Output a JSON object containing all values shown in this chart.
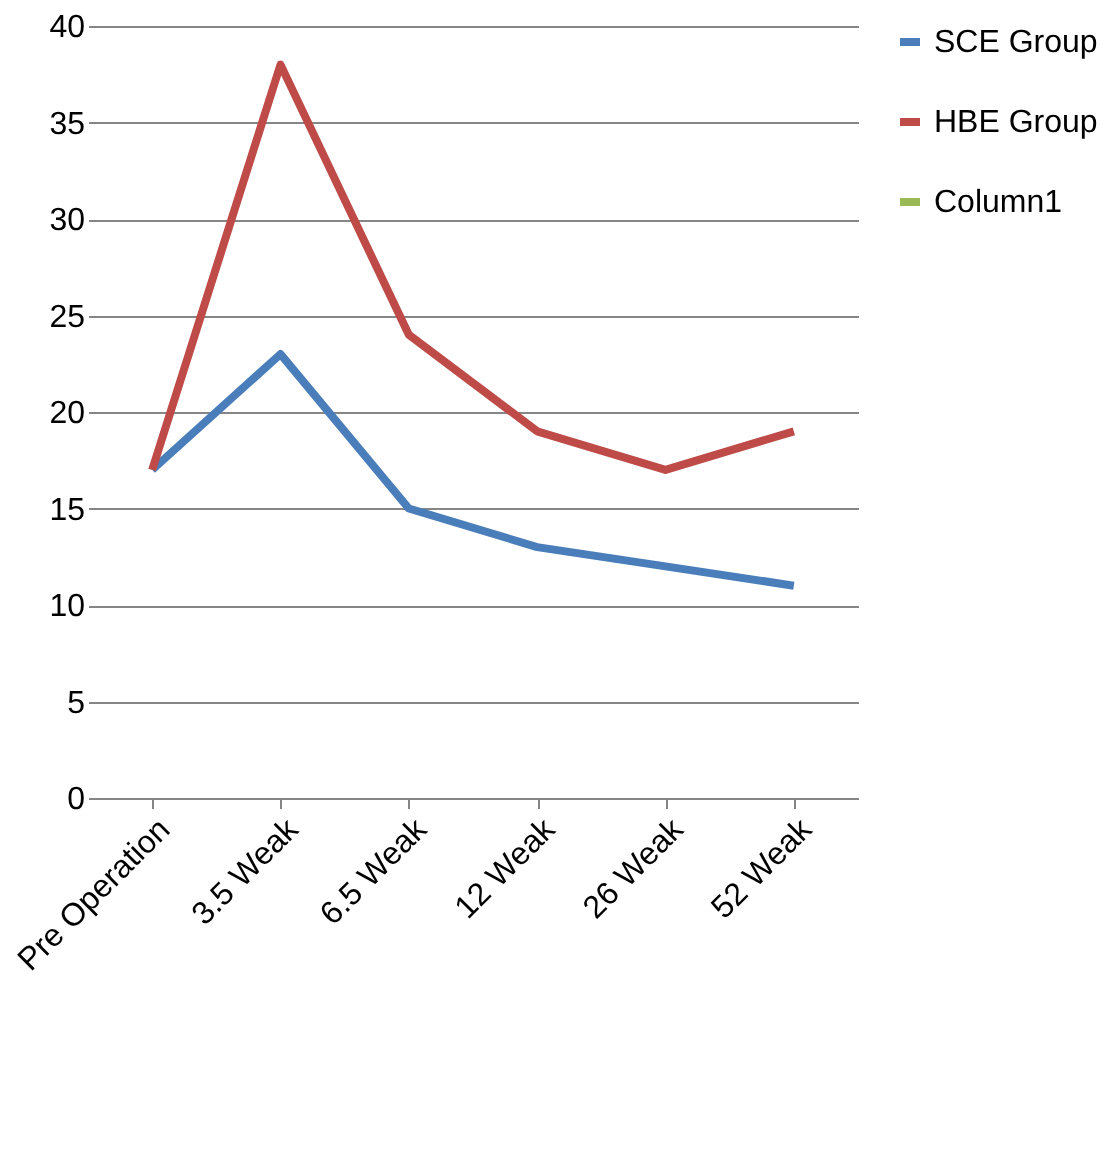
{
  "chart_data": {
    "type": "line",
    "categories": [
      "Pre Operation",
      "3.5 Weak",
      "6.5 Weak",
      "12 Weak",
      "26 Weak",
      "52 Weak"
    ],
    "series": [
      {
        "name": "SCE Group",
        "color": "#4a7ebb",
        "values": [
          17,
          23,
          15,
          13,
          12,
          11
        ]
      },
      {
        "name": "HBE Group",
        "color": "#be4b48",
        "values": [
          17,
          38,
          24,
          19,
          17,
          19
        ]
      },
      {
        "name": "Column1",
        "color": "#98b954",
        "values": [
          null,
          null,
          null,
          null,
          null,
          null
        ]
      }
    ],
    "ylim": [
      0,
      40
    ],
    "yticks": [
      0,
      5,
      10,
      15,
      20,
      25,
      30,
      35,
      40
    ],
    "grid": "y",
    "legend": "right",
    "marker": "none",
    "line_style": "solid"
  }
}
